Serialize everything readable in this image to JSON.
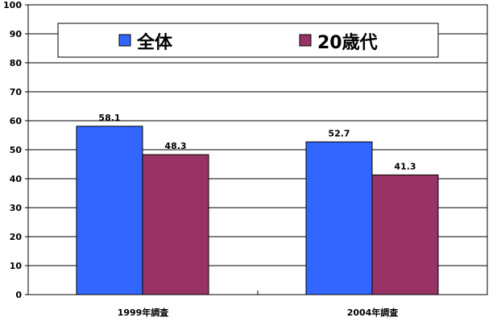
{
  "chart_data": {
    "type": "bar",
    "categories": [
      "1999年調査",
      "2004年調査"
    ],
    "series": [
      {
        "name": "全体",
        "values": [
          58.1,
          52.7
        ],
        "color": "#3366FF"
      },
      {
        "name": "20歳代",
        "values": [
          48.3,
          41.3
        ],
        "color": "#993366"
      }
    ],
    "data_labels": [
      [
        "58.1",
        "52.7"
      ],
      [
        "48.3",
        "41.3"
      ]
    ],
    "yticks": [
      0,
      10,
      20,
      30,
      40,
      50,
      60,
      70,
      80,
      90,
      100
    ],
    "ylim": [
      0,
      100
    ],
    "grid": true,
    "legend_position": "top"
  }
}
